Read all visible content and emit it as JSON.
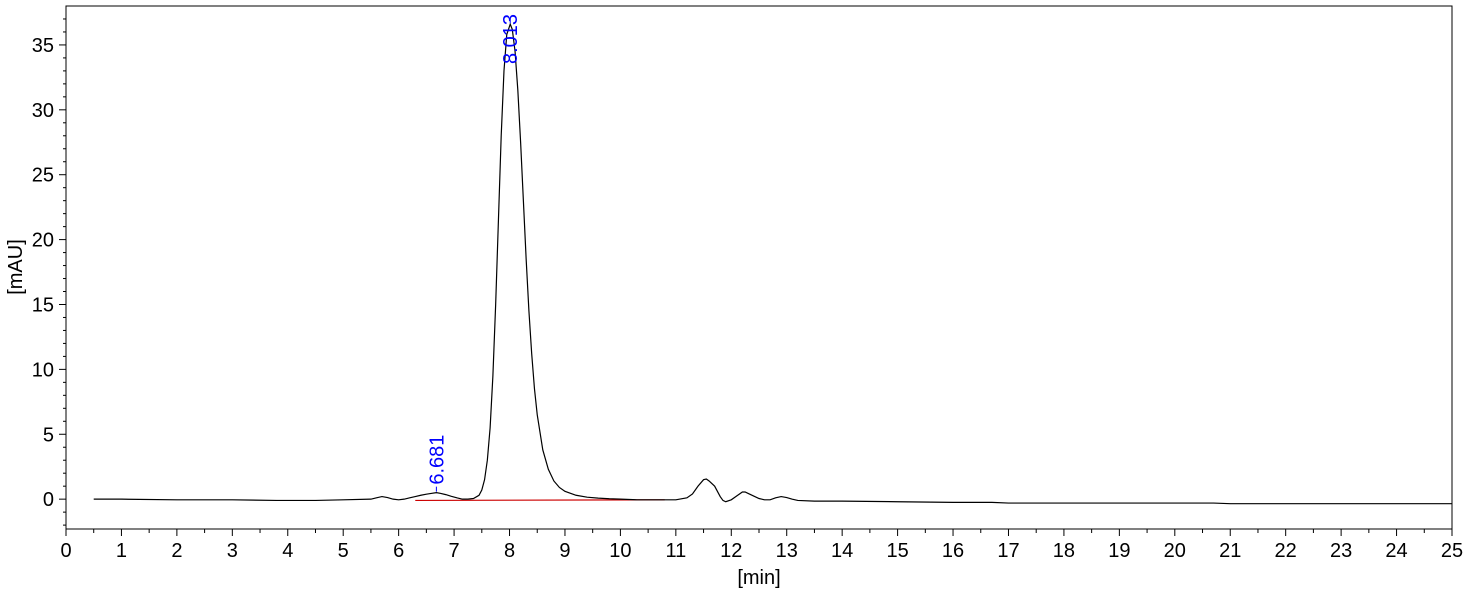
{
  "chart_data": {
    "type": "line",
    "xlabel": "[min]",
    "ylabel": "[mAU]",
    "xlim": [
      0,
      25
    ],
    "ylim": [
      -2.3,
      38
    ],
    "xticks": [
      0,
      1,
      2,
      3,
      4,
      5,
      6,
      7,
      8,
      9,
      10,
      11,
      12,
      13,
      14,
      15,
      16,
      17,
      18,
      19,
      20,
      21,
      22,
      23,
      24,
      25
    ],
    "yticks": [
      0,
      5,
      10,
      15,
      20,
      25,
      30,
      35
    ],
    "grid": false,
    "colors": {
      "trace": "#000000",
      "baseline": "#cc0000",
      "peak_label": "#0000ff",
      "axis": "#000000"
    },
    "series": [
      {
        "x": [
          0.5,
          1,
          2,
          3,
          3.8,
          4,
          4.5,
          5,
          5.5,
          5.6,
          5.7,
          5.8,
          5.9,
          6.0,
          6.1,
          6.2,
          6.3,
          6.4,
          6.5,
          6.6,
          6.681,
          6.75,
          6.85,
          6.95,
          7.05,
          7.15,
          7.25,
          7.35,
          7.45,
          7.5,
          7.55,
          7.6,
          7.65,
          7.7,
          7.75,
          7.8,
          7.85,
          7.9,
          7.95,
          8.013,
          8.05,
          8.1,
          8.15,
          8.2,
          8.25,
          8.3,
          8.35,
          8.4,
          8.45,
          8.5,
          8.6,
          8.7,
          8.8,
          8.9,
          9.0,
          9.2,
          9.4,
          9.6,
          9.8,
          10.0,
          10.3,
          10.6,
          10.8,
          11.0,
          11.2,
          11.3,
          11.4,
          11.5,
          11.55,
          11.6,
          11.7,
          11.8,
          11.85,
          11.9,
          12.0,
          12.1,
          12.2,
          12.25,
          12.3,
          12.4,
          12.5,
          12.6,
          12.7,
          12.8,
          12.9,
          13.0,
          13.1,
          13.2,
          13.5,
          14,
          15,
          16,
          16.7,
          17,
          18,
          19,
          20,
          20.7,
          21,
          22,
          23,
          24,
          25
        ],
        "y": [
          0.0,
          0.0,
          -0.05,
          -0.05,
          -0.1,
          -0.1,
          -0.1,
          -0.05,
          0.0,
          0.1,
          0.2,
          0.12,
          0.0,
          -0.05,
          0.0,
          0.1,
          0.2,
          0.3,
          0.38,
          0.45,
          0.5,
          0.45,
          0.35,
          0.22,
          0.1,
          0.0,
          0.0,
          0.05,
          0.3,
          0.7,
          1.5,
          3.0,
          5.5,
          9.5,
          15.0,
          21.5,
          28.0,
          33.0,
          35.8,
          36.6,
          36.2,
          34.5,
          31.5,
          27.5,
          23.0,
          18.5,
          14.5,
          11.2,
          8.5,
          6.5,
          3.8,
          2.3,
          1.4,
          0.9,
          0.6,
          0.3,
          0.15,
          0.08,
          0.03,
          0.0,
          -0.05,
          -0.05,
          -0.05,
          -0.05,
          0.1,
          0.4,
          1.0,
          1.5,
          1.55,
          1.4,
          1.0,
          0.2,
          -0.1,
          -0.2,
          -0.05,
          0.25,
          0.55,
          0.55,
          0.45,
          0.25,
          0.05,
          -0.05,
          -0.05,
          0.1,
          0.2,
          0.12,
          0.0,
          -0.1,
          -0.15,
          -0.15,
          -0.2,
          -0.25,
          -0.25,
          -0.3,
          -0.3,
          -0.3,
          -0.3,
          -0.3,
          -0.35,
          -0.35,
          -0.35,
          -0.35,
          -0.35
        ]
      }
    ],
    "baselines": [
      {
        "x": [
          6.3,
          10.8
        ],
        "y": [
          -0.1,
          -0.05
        ]
      }
    ],
    "peaks": [
      {
        "label": "6.681",
        "x": 6.681,
        "y": 0.5
      },
      {
        "label": "8.013",
        "x": 8.013,
        "y": 36.6
      }
    ]
  }
}
